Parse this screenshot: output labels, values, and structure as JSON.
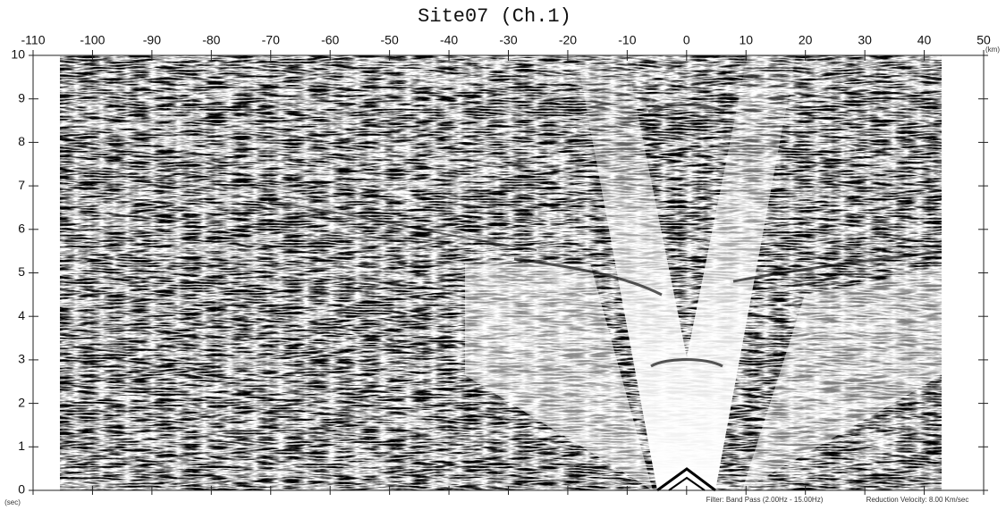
{
  "chart_data": {
    "type": "seismic",
    "title": "Site07 (Ch.1)",
    "x_unit": "(km)",
    "y_unit": "(sec)",
    "xlim": [
      -110,
      50
    ],
    "xticks": [
      -110,
      -100,
      -90,
      -80,
      -70,
      -60,
      -50,
      -40,
      -30,
      -20,
      -10,
      0,
      10,
      20,
      30,
      40,
      50
    ],
    "ylim": [
      0,
      10
    ],
    "yticks": [
      0,
      1,
      2,
      3,
      4,
      5,
      6,
      7,
      8,
      9,
      10
    ],
    "notes": [
      "Filter: Band Pass (2.00Hz - 15.00Hz)",
      "Reduction Velocity: 8.00 Km/sec"
    ]
  }
}
